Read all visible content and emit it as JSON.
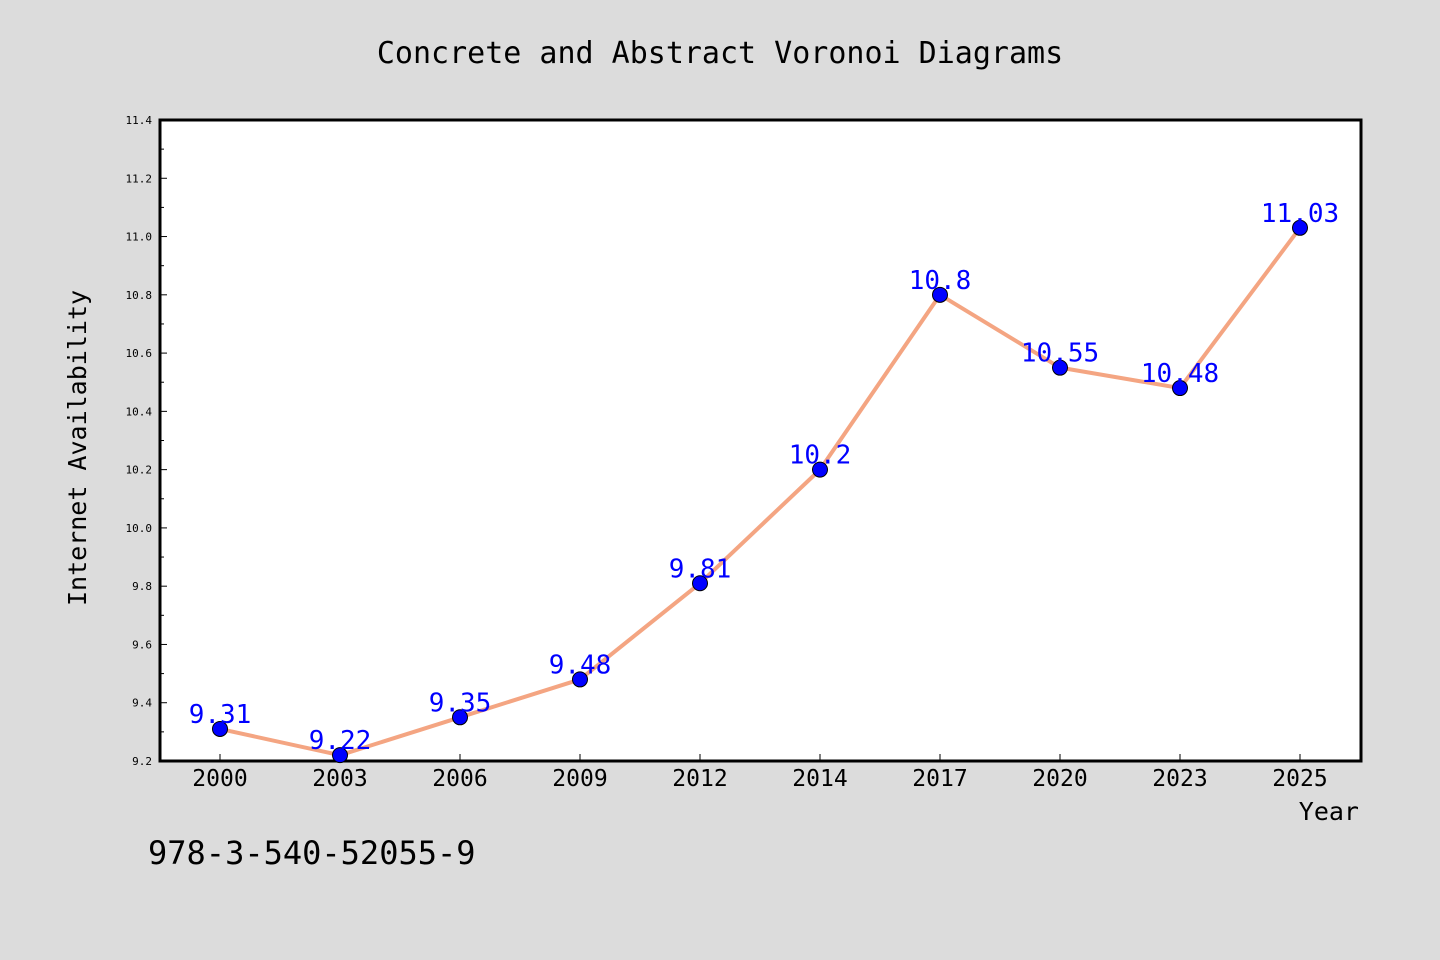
{
  "chart_data": {
    "type": "line",
    "title": "Concrete and Abstract Voronoi Diagrams",
    "xlabel": "Year",
    "ylabel": "Internet Availability",
    "categories": [
      "2000",
      "2003",
      "2006",
      "2009",
      "2012",
      "2014",
      "2017",
      "2020",
      "2023",
      "2025"
    ],
    "series": [
      {
        "values": [
          9.31,
          9.22,
          9.35,
          9.48,
          9.81,
          10.2,
          10.8,
          10.55,
          10.48,
          11.03
        ],
        "data_labels": [
          "9.31",
          "9.22",
          "9.35",
          "9.48",
          "9.81",
          "10.2",
          "10.8",
          "10.55",
          "10.48",
          "11.03"
        ],
        "line_color": "#f4a582",
        "marker_color": "#0000ff"
      }
    ],
    "ylim": [
      9.2,
      11.4
    ],
    "yticks": [
      "9.2",
      "9.4",
      "9.6",
      "9.8",
      "10.0",
      "10.2",
      "10.4",
      "10.6",
      "10.8",
      "11.0",
      "11.2",
      "11.4"
    ],
    "grid": false,
    "legend": "none",
    "label_color": "#0000ff"
  },
  "annotation": "978-3-540-52055-9",
  "colors": {
    "background": "#dcdcdc",
    "plot_background": "#ffffff"
  }
}
